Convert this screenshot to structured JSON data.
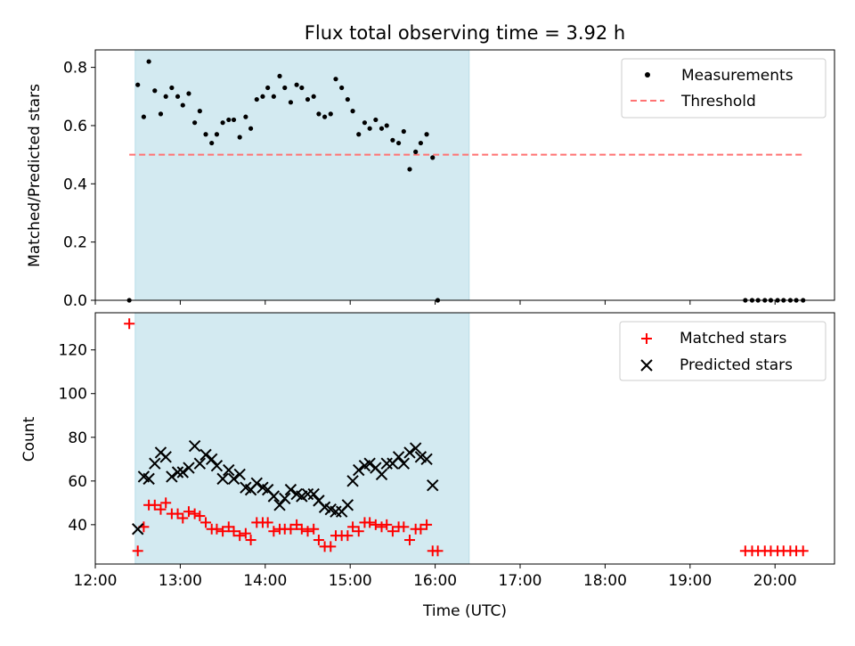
{
  "title": "Flux total observing time = 3.92 h",
  "chart_data": {
    "type": "scatter",
    "title": "Flux total observing time = 3.92 h",
    "xlabel": "Time (UTC)",
    "xlim": [
      12.0,
      20.7
    ],
    "xticks": [
      12,
      13,
      14,
      15,
      16,
      17,
      18,
      19,
      20
    ],
    "xtick_labels": [
      "12:00",
      "13:00",
      "14:00",
      "15:00",
      "16:00",
      "17:00",
      "18:00",
      "19:00",
      "20:00"
    ],
    "shaded_span": {
      "from": 12.47,
      "to": 16.4,
      "color": "#d3eaf1"
    },
    "colors": {
      "measurements": "#000000",
      "threshold": "#ff7373",
      "matched": "#ff0000",
      "predicted": "#000000"
    },
    "panels": [
      {
        "name": "ratio",
        "ylabel": "Matched/Predicted stars",
        "ylim": [
          0.0,
          0.86
        ],
        "yticks": [
          0.0,
          0.2,
          0.4,
          0.6,
          0.8
        ],
        "ytick_labels": [
          "0.0",
          "0.2",
          "0.4",
          "0.6",
          "0.8"
        ],
        "legend": [
          "Measurements",
          "Threshold"
        ],
        "legend_position": "top-right",
        "threshold": {
          "value": 0.5,
          "x_from": 12.4,
          "x_to": 20.33
        },
        "series": [
          {
            "name": "Measurements",
            "marker": "dot",
            "points": [
              [
                12.4,
                0.0
              ],
              [
                12.5,
                0.74
              ],
              [
                12.57,
                0.63
              ],
              [
                12.63,
                0.82
              ],
              [
                12.7,
                0.72
              ],
              [
                12.77,
                0.64
              ],
              [
                12.83,
                0.7
              ],
              [
                12.9,
                0.73
              ],
              [
                12.97,
                0.7
              ],
              [
                13.03,
                0.67
              ],
              [
                13.1,
                0.71
              ],
              [
                13.17,
                0.61
              ],
              [
                13.23,
                0.65
              ],
              [
                13.3,
                0.57
              ],
              [
                13.37,
                0.54
              ],
              [
                13.43,
                0.57
              ],
              [
                13.5,
                0.61
              ],
              [
                13.57,
                0.62
              ],
              [
                13.63,
                0.62
              ],
              [
                13.7,
                0.56
              ],
              [
                13.77,
                0.63
              ],
              [
                13.83,
                0.59
              ],
              [
                13.9,
                0.69
              ],
              [
                13.97,
                0.7
              ],
              [
                14.03,
                0.73
              ],
              [
                14.1,
                0.7
              ],
              [
                14.17,
                0.77
              ],
              [
                14.23,
                0.73
              ],
              [
                14.3,
                0.68
              ],
              [
                14.37,
                0.74
              ],
              [
                14.43,
                0.73
              ],
              [
                14.5,
                0.69
              ],
              [
                14.57,
                0.7
              ],
              [
                14.63,
                0.64
              ],
              [
                14.7,
                0.63
              ],
              [
                14.77,
                0.64
              ],
              [
                14.83,
                0.76
              ],
              [
                14.9,
                0.73
              ],
              [
                14.97,
                0.69
              ],
              [
                15.03,
                0.65
              ],
              [
                15.1,
                0.57
              ],
              [
                15.17,
                0.61
              ],
              [
                15.23,
                0.59
              ],
              [
                15.3,
                0.62
              ],
              [
                15.37,
                0.59
              ],
              [
                15.43,
                0.6
              ],
              [
                15.5,
                0.55
              ],
              [
                15.57,
                0.54
              ],
              [
                15.63,
                0.58
              ],
              [
                15.7,
                0.45
              ],
              [
                15.77,
                0.51
              ],
              [
                15.83,
                0.54
              ],
              [
                15.9,
                0.57
              ],
              [
                15.97,
                0.49
              ],
              [
                16.03,
                0.0
              ],
              [
                19.65,
                0.0
              ],
              [
                19.73,
                0.0
              ],
              [
                19.8,
                0.0
              ],
              [
                19.88,
                0.0
              ],
              [
                19.95,
                0.0
              ],
              [
                20.03,
                0.0
              ],
              [
                20.1,
                0.0
              ],
              [
                20.18,
                0.0
              ],
              [
                20.25,
                0.0
              ],
              [
                20.33,
                0.0
              ]
            ]
          }
        ]
      },
      {
        "name": "counts",
        "ylabel": "Count",
        "ylim": [
          22,
          137
        ],
        "yticks": [
          40,
          60,
          80,
          100,
          120
        ],
        "ytick_labels": [
          "40",
          "60",
          "80",
          "100",
          "120"
        ],
        "legend": [
          "Matched stars",
          "Predicted stars"
        ],
        "legend_position": "top-right",
        "series": [
          {
            "name": "Matched stars",
            "marker": "plus",
            "points": [
              [
                12.4,
                132
              ],
              [
                12.5,
                28
              ],
              [
                12.57,
                39
              ],
              [
                12.63,
                49
              ],
              [
                12.7,
                49
              ],
              [
                12.77,
                47
              ],
              [
                12.83,
                50
              ],
              [
                12.9,
                45
              ],
              [
                12.97,
                45
              ],
              [
                13.03,
                43
              ],
              [
                13.1,
                46
              ],
              [
                13.17,
                45
              ],
              [
                13.23,
                44
              ],
              [
                13.3,
                41
              ],
              [
                13.37,
                38
              ],
              [
                13.43,
                38
              ],
              [
                13.5,
                37
              ],
              [
                13.57,
                39
              ],
              [
                13.63,
                37
              ],
              [
                13.7,
                35
              ],
              [
                13.77,
                36
              ],
              [
                13.83,
                33
              ],
              [
                13.9,
                41
              ],
              [
                13.97,
                41
              ],
              [
                14.03,
                41
              ],
              [
                14.1,
                37
              ],
              [
                14.17,
                38
              ],
              [
                14.23,
                38
              ],
              [
                14.3,
                38
              ],
              [
                14.37,
                40
              ],
              [
                14.43,
                38
              ],
              [
                14.5,
                37
              ],
              [
                14.57,
                38
              ],
              [
                14.63,
                33
              ],
              [
                14.7,
                30
              ],
              [
                14.77,
                30
              ],
              [
                14.83,
                35
              ],
              [
                14.9,
                35
              ],
              [
                14.97,
                35
              ],
              [
                15.03,
                39
              ],
              [
                15.1,
                37
              ],
              [
                15.17,
                41
              ],
              [
                15.23,
                41
              ],
              [
                15.3,
                40
              ],
              [
                15.37,
                39
              ],
              [
                15.43,
                40
              ],
              [
                15.5,
                37
              ],
              [
                15.57,
                39
              ],
              [
                15.63,
                39
              ],
              [
                15.7,
                33
              ],
              [
                15.77,
                38
              ],
              [
                15.83,
                38
              ],
              [
                15.9,
                40
              ],
              [
                15.97,
                28
              ],
              [
                16.03,
                28
              ],
              [
                19.65,
                28
              ],
              [
                19.73,
                28
              ],
              [
                19.8,
                28
              ],
              [
                19.88,
                28
              ],
              [
                19.95,
                28
              ],
              [
                20.03,
                28
              ],
              [
                20.1,
                28
              ],
              [
                20.18,
                28
              ],
              [
                20.25,
                28
              ],
              [
                20.33,
                28
              ]
            ]
          },
          {
            "name": "Predicted stars",
            "marker": "cross",
            "points": [
              [
                12.5,
                38
              ],
              [
                12.57,
                62
              ],
              [
                12.63,
                61
              ],
              [
                12.7,
                68
              ],
              [
                12.77,
                73
              ],
              [
                12.83,
                71
              ],
              [
                12.9,
                62
              ],
              [
                12.97,
                64
              ],
              [
                13.03,
                64
              ],
              [
                13.1,
                66
              ],
              [
                13.17,
                76
              ],
              [
                13.23,
                68
              ],
              [
                13.3,
                72
              ],
              [
                13.37,
                70
              ],
              [
                13.43,
                67
              ],
              [
                13.5,
                61
              ],
              [
                13.57,
                65
              ],
              [
                13.63,
                61
              ],
              [
                13.7,
                63
              ],
              [
                13.77,
                57
              ],
              [
                13.83,
                56
              ],
              [
                13.9,
                59
              ],
              [
                13.97,
                57
              ],
              [
                14.03,
                56
              ],
              [
                14.1,
                53
              ],
              [
                14.17,
                49
              ],
              [
                14.23,
                52
              ],
              [
                14.3,
                56
              ],
              [
                14.37,
                54
              ],
              [
                14.43,
                53
              ],
              [
                14.5,
                54
              ],
              [
                14.57,
                54
              ],
              [
                14.63,
                51
              ],
              [
                14.7,
                48
              ],
              [
                14.77,
                47
              ],
              [
                14.83,
                46
              ],
              [
                14.9,
                46
              ],
              [
                14.97,
                49
              ],
              [
                15.03,
                60
              ],
              [
                15.1,
                65
              ],
              [
                15.17,
                67
              ],
              [
                15.23,
                68
              ],
              [
                15.3,
                66
              ],
              [
                15.37,
                63
              ],
              [
                15.43,
                68
              ],
              [
                15.5,
                68
              ],
              [
                15.57,
                71
              ],
              [
                15.63,
                68
              ],
              [
                15.7,
                73
              ],
              [
                15.77,
                75
              ],
              [
                15.83,
                71
              ],
              [
                15.9,
                70
              ],
              [
                15.97,
                58
              ]
            ]
          }
        ]
      }
    ]
  }
}
